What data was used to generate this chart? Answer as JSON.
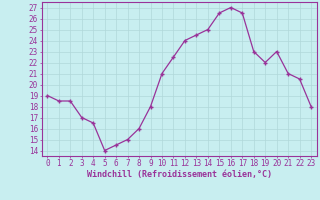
{
  "x": [
    0,
    1,
    2,
    3,
    4,
    5,
    6,
    7,
    8,
    9,
    10,
    11,
    12,
    13,
    14,
    15,
    16,
    17,
    18,
    19,
    20,
    21,
    22,
    23
  ],
  "y": [
    19,
    18.5,
    18.5,
    17,
    16.5,
    14,
    14.5,
    15,
    16,
    18,
    21,
    22.5,
    24,
    24.5,
    25,
    26.5,
    27,
    26.5,
    23,
    22,
    23,
    21,
    20.5,
    18
  ],
  "line_color": "#993399",
  "marker": "+",
  "bg_color": "#c8eef0",
  "grid_color": "#b0d8da",
  "xlabel": "Windchill (Refroidissement éolien,°C)",
  "xlabel_color": "#993399",
  "ylabel_ticks": [
    14,
    15,
    16,
    17,
    18,
    19,
    20,
    21,
    22,
    23,
    24,
    25,
    26,
    27
  ],
  "xlim": [
    -0.5,
    23.5
  ],
  "ylim": [
    13.5,
    27.5
  ],
  "tick_color": "#993399",
  "spine_color": "#993399",
  "font_size_ticks": 5.5,
  "font_size_xlabel": 6.0
}
